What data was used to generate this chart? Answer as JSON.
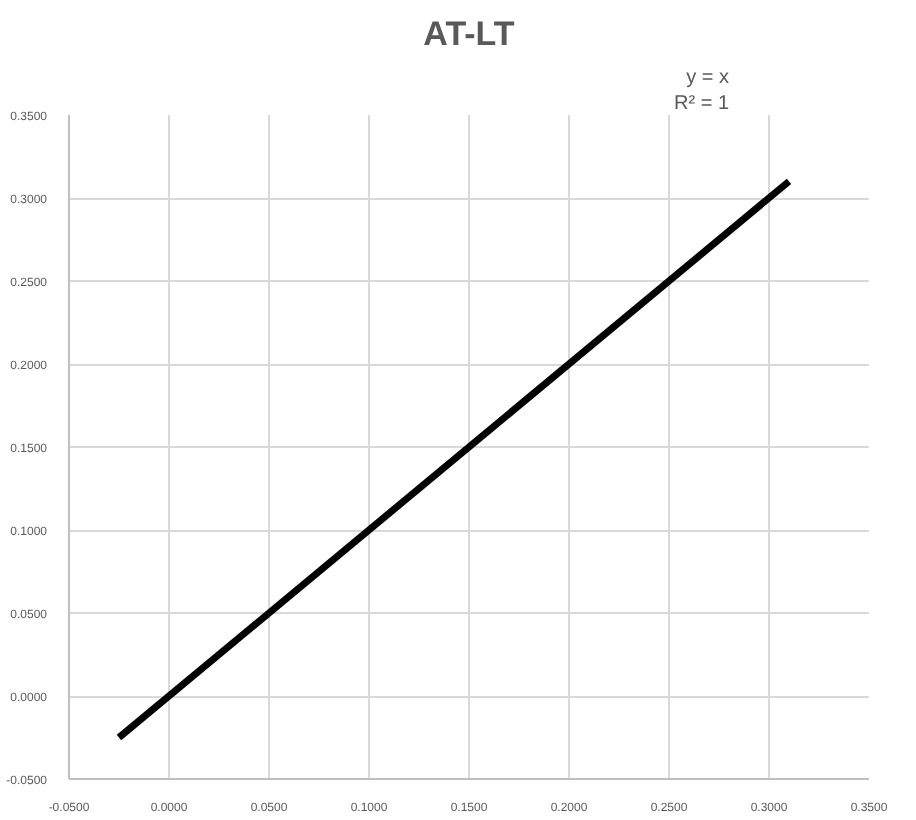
{
  "chart_data": {
    "type": "line",
    "title": "AT-LT",
    "annotations": [
      "y = x",
      "R² = 1"
    ],
    "x": [
      -0.025,
      0.31
    ],
    "series": [
      {
        "color": "#000000",
        "values": [
          -0.025,
          0.31
        ]
      }
    ],
    "xlim": [
      -0.05,
      0.35
    ],
    "ylim": [
      -0.05,
      0.35
    ],
    "xticks": [
      {
        "value": -0.05,
        "label": "-0.0500"
      },
      {
        "value": 0,
        "label": "0.0000"
      },
      {
        "value": 0.05,
        "label": "0.0500"
      },
      {
        "value": 0.1,
        "label": "0.1000"
      },
      {
        "value": 0.15,
        "label": "0.1500"
      },
      {
        "value": 0.2,
        "label": "0.2000"
      },
      {
        "value": 0.25,
        "label": "0.2500"
      },
      {
        "value": 0.3,
        "label": "0.3000"
      },
      {
        "value": 0.35,
        "label": "0.3500"
      }
    ],
    "yticks": [
      {
        "value": -0.05,
        "label": "-0.0500"
      },
      {
        "value": 0,
        "label": "0.0000"
      },
      {
        "value": 0.05,
        "label": "0.0500"
      },
      {
        "value": 0.1,
        "label": "0.1000"
      },
      {
        "value": 0.15,
        "label": "0.1500"
      },
      {
        "value": 0.2,
        "label": "0.2000"
      },
      {
        "value": 0.25,
        "label": "0.2500"
      },
      {
        "value": 0.3,
        "label": "0.3000"
      },
      {
        "value": 0.35,
        "label": "0.3500"
      }
    ],
    "grid": true,
    "marker": "none",
    "line_style": "solid"
  }
}
